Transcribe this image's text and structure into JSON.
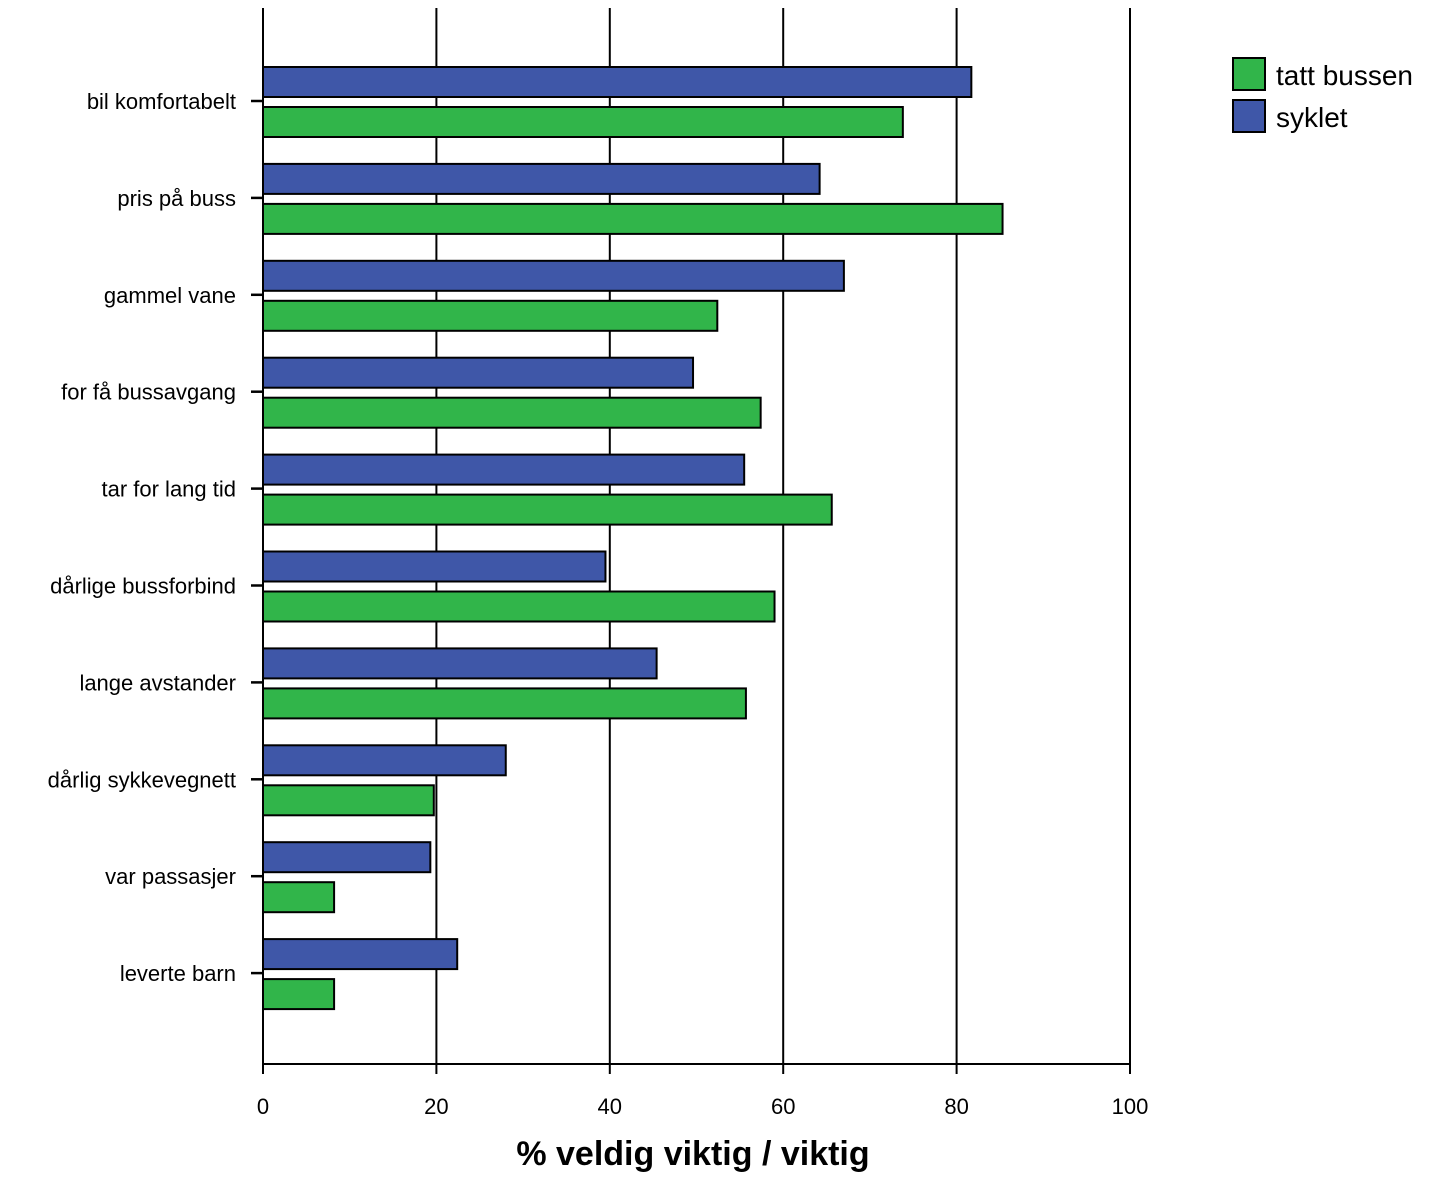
{
  "chart_data": {
    "type": "bar",
    "orientation": "horizontal",
    "title": "",
    "xlabel": "% veldig viktig / viktig",
    "ylabel": "",
    "xlim": [
      0,
      100
    ],
    "xticks": [
      "0",
      "20",
      "40",
      "60",
      "80",
      "100"
    ],
    "grid": "vertical lines at major ticks",
    "legend_position": "top-right, outside plot",
    "categories": [
      "bil komfortabelt",
      "pris på buss",
      "gammel vane",
      "for få bussavgang",
      "tar for lang tid",
      "dårlige bussforbind",
      "lange avstander",
      "dårlig sykkevegnett",
      "var passasjer",
      "leverte barn"
    ],
    "series": [
      {
        "name": "syklet",
        "color": "#3f57a8",
        "values": [
          81.7,
          64.2,
          67.0,
          49.6,
          55.5,
          39.5,
          45.4,
          28.0,
          19.3,
          22.4
        ]
      },
      {
        "name": "tatt bussen",
        "color": "#31b54a",
        "values": [
          73.8,
          85.3,
          52.4,
          57.4,
          65.6,
          59.0,
          55.7,
          19.7,
          8.2,
          8.2
        ]
      }
    ],
    "legend": [
      {
        "name": "tatt bussen",
        "color": "#31b54a"
      },
      {
        "name": "syklet",
        "color": "#3f57a8"
      }
    ]
  }
}
